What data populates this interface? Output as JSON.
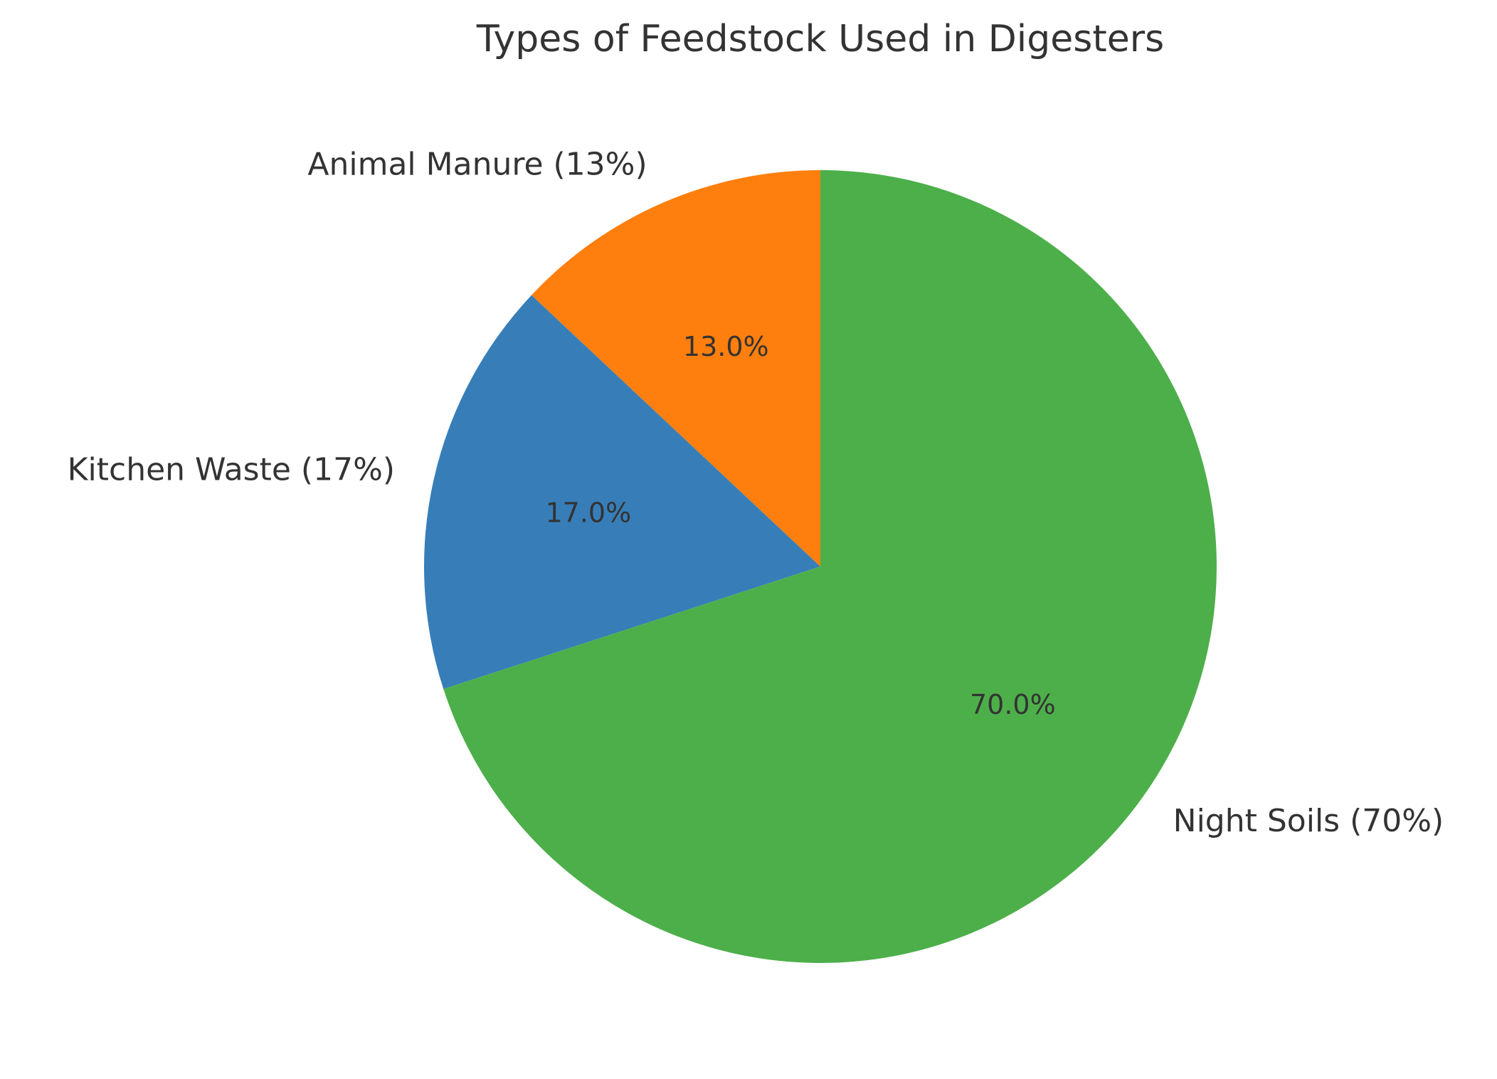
{
  "chart_data": {
    "type": "pie",
    "title": "Types of Feedstock Used in Digesters",
    "categories": [
      "Animal Manure (13%)",
      "Kitchen Waste (17%)",
      "Night Soils (70%)"
    ],
    "values": [
      13,
      17,
      70
    ],
    "value_labels": [
      "13.0%",
      "17.0%",
      "70.0%"
    ],
    "colors": [
      "#ff7f0e",
      "#377eb8",
      "#4daf4a"
    ]
  }
}
